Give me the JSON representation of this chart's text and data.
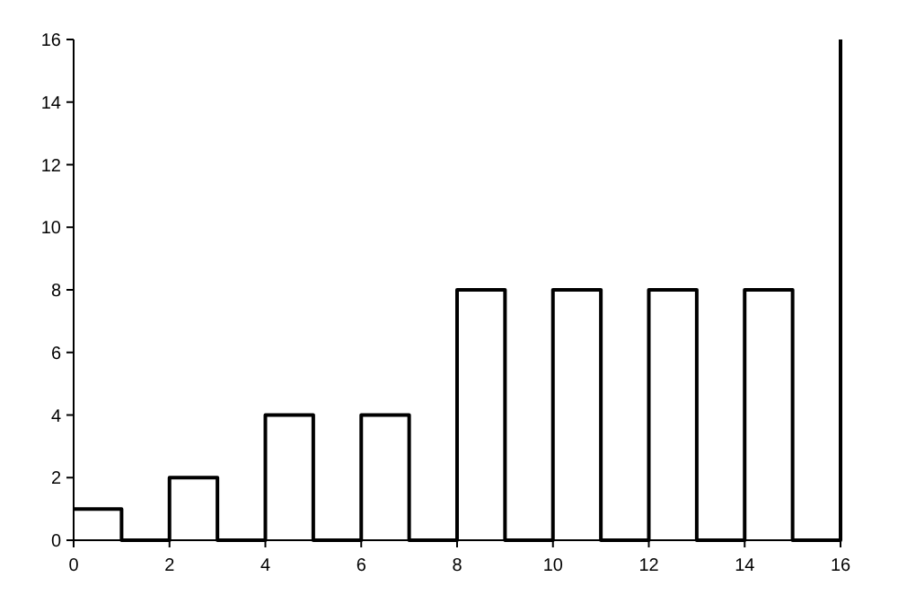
{
  "chart_data": {
    "type": "step",
    "x": [
      0,
      1,
      2,
      3,
      4,
      5,
      6,
      7,
      8,
      9,
      10,
      11,
      12,
      13,
      14,
      15,
      16
    ],
    "series": [
      {
        "color": "#000000",
        "values": [
          1,
          0,
          2,
          0,
          4,
          0,
          4,
          0,
          8,
          0,
          8,
          0,
          8,
          0,
          8,
          0,
          16
        ]
      }
    ],
    "xlim": [
      0,
      16
    ],
    "xticks": [
      0,
      2,
      4,
      6,
      8,
      10,
      12,
      14,
      16
    ],
    "ylim": [
      0,
      16
    ],
    "yticks": [
      0,
      2,
      4,
      6,
      8,
      10,
      12,
      14,
      16
    ],
    "grid": false,
    "line_style": "solid"
  }
}
